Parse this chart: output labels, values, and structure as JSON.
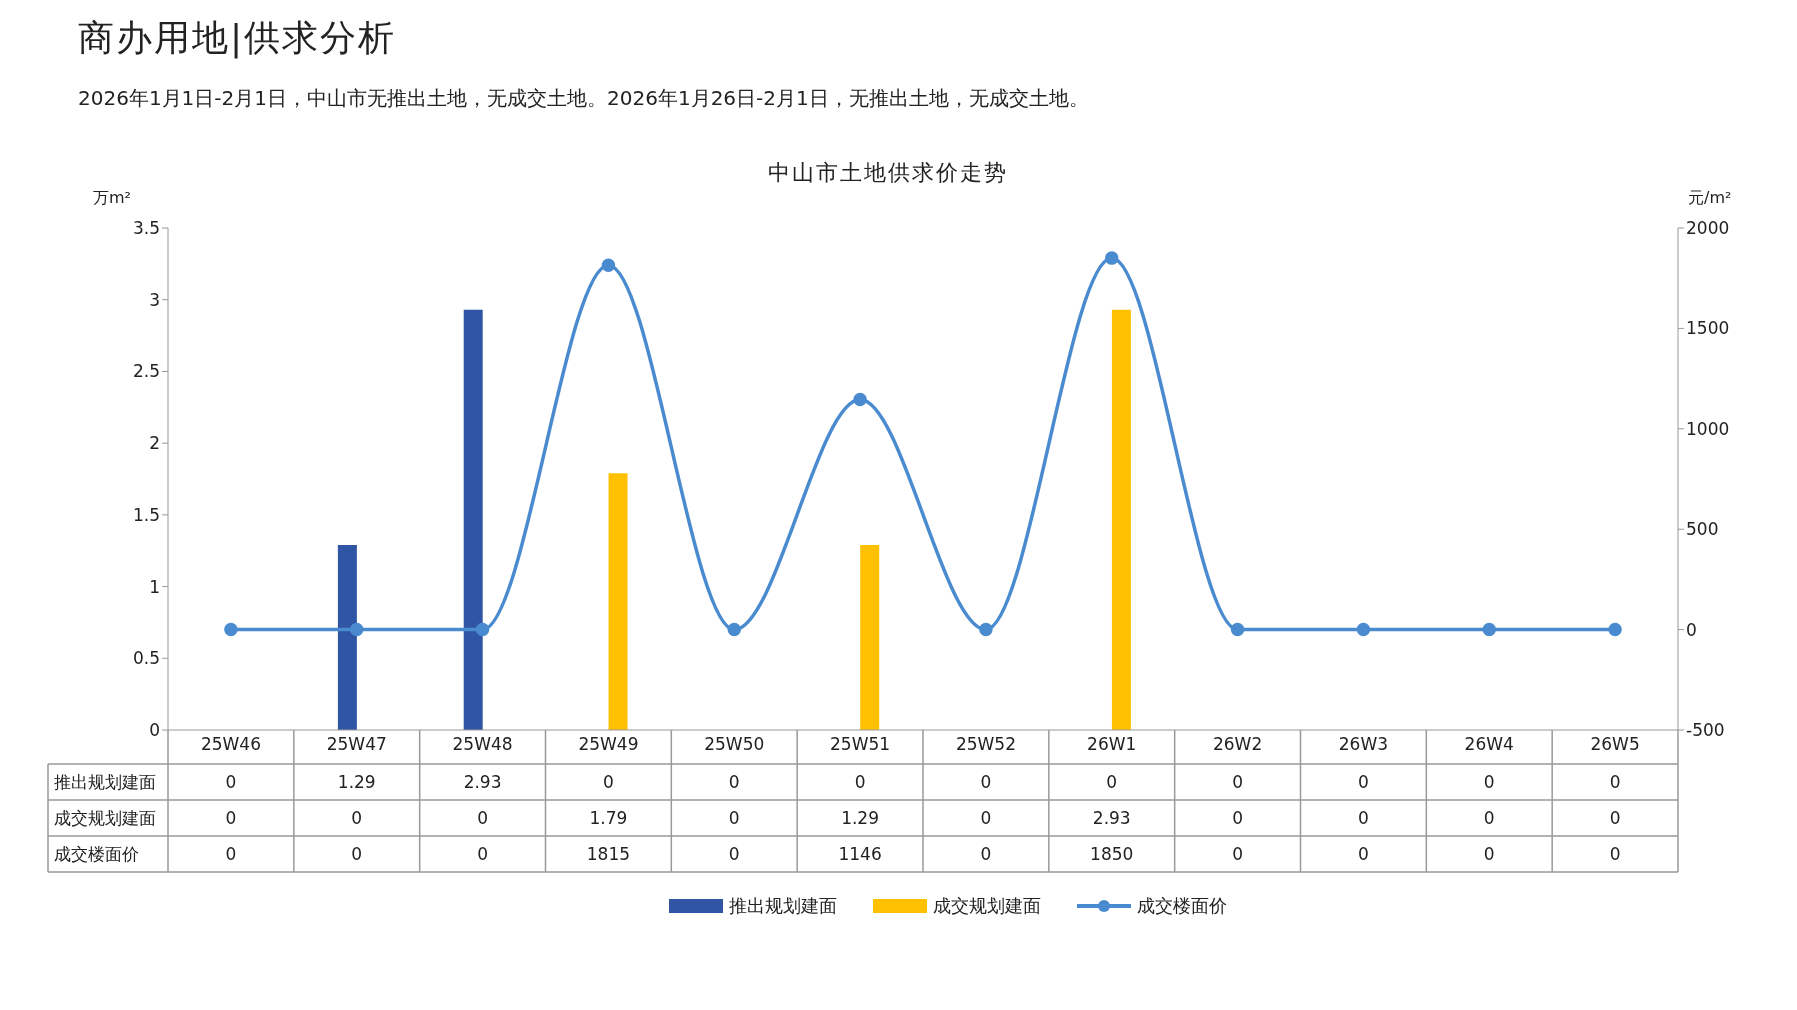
{
  "chart_data": {
    "type": "bar",
    "title": "商办用地|供求分析",
    "subtitle": "2026年1月1日-2月1日，中山市无推出土地，无成交土地。2026年1月26日-2月1日，无推出土地，无成交土地。",
    "annotations": [
      "中山市土地供求价走势"
    ],
    "categories": [
      "25W46",
      "25W47",
      "25W48",
      "25W49",
      "25W50",
      "25W51",
      "25W52",
      "26W1",
      "26W2",
      "26W3",
      "26W4",
      "26W5"
    ],
    "series": [
      {
        "name": "推出规划建面",
        "color": "#2f55a4",
        "values": [
          0,
          1.29,
          2.93,
          0,
          0,
          0,
          0,
          0,
          0,
          0,
          0,
          0
        ]
      },
      {
        "name": "成交规划建面",
        "color": "#ffc000",
        "values": [
          0,
          0,
          0,
          1.79,
          0,
          1.29,
          0,
          2.93,
          0,
          0,
          0,
          0
        ]
      },
      {
        "name": "成交楼面价",
        "type": "line",
        "axis": "y2",
        "color": "#4a8bd0",
        "marker": "circle",
        "line_style": "solid",
        "values": [
          0,
          0,
          0,
          1815,
          0,
          1146,
          0,
          1850,
          0,
          0,
          0,
          0
        ]
      }
    ],
    "ylabel": "万m²",
    "y2label": "元/m²",
    "ylim": [
      0,
      3.5
    ],
    "yticks": [
      0,
      0.5,
      1,
      1.5,
      2,
      2.5,
      3,
      3.5
    ],
    "y2lim": [
      -500,
      2000
    ],
    "y2ticks": [
      -500,
      0,
      500,
      1000,
      1500,
      2000
    ],
    "data_labels": true,
    "legend": "bottom",
    "grid": false
  }
}
